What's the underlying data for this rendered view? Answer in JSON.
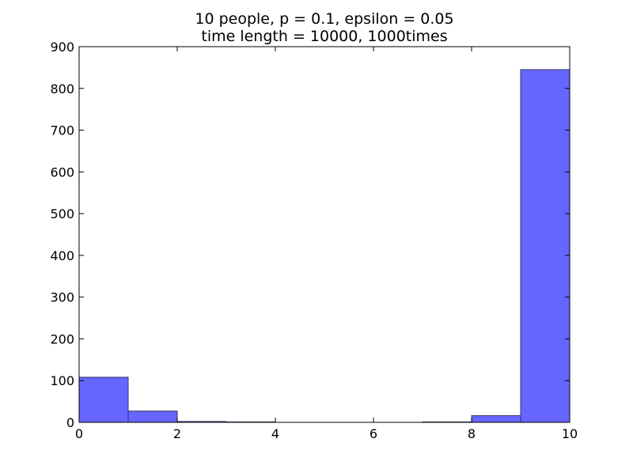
{
  "chart_data": {
    "type": "bar",
    "title_lines": [
      "10 people,  p = 0.1,  epsilon = 0.05",
      "time length = 10000,  1000times"
    ],
    "xlabel": "",
    "ylabel": "",
    "xlim": [
      0,
      10
    ],
    "ylim": [
      0,
      900
    ],
    "x_ticks": [
      "0",
      "2",
      "4",
      "6",
      "8",
      "10"
    ],
    "y_ticks": [
      "0",
      "100",
      "200",
      "300",
      "400",
      "500",
      "600",
      "700",
      "800",
      "900"
    ],
    "bins": [
      {
        "x0": 0,
        "x1": 1,
        "value": 108
      },
      {
        "x0": 1,
        "x1": 2,
        "value": 27
      },
      {
        "x0": 2,
        "x1": 3,
        "value": 2
      },
      {
        "x0": 3,
        "x1": 4,
        "value": 1
      },
      {
        "x0": 4,
        "x1": 5,
        "value": 0
      },
      {
        "x0": 5,
        "x1": 6,
        "value": 0
      },
      {
        "x0": 6,
        "x1": 7,
        "value": 0
      },
      {
        "x0": 7,
        "x1": 8,
        "value": 1
      },
      {
        "x0": 8,
        "x1": 9,
        "value": 16
      },
      {
        "x0": 9,
        "x1": 10,
        "value": 845
      }
    ],
    "bar_color": "#6666ff",
    "edge_color": "#333366",
    "grid": false,
    "legend": "none"
  }
}
